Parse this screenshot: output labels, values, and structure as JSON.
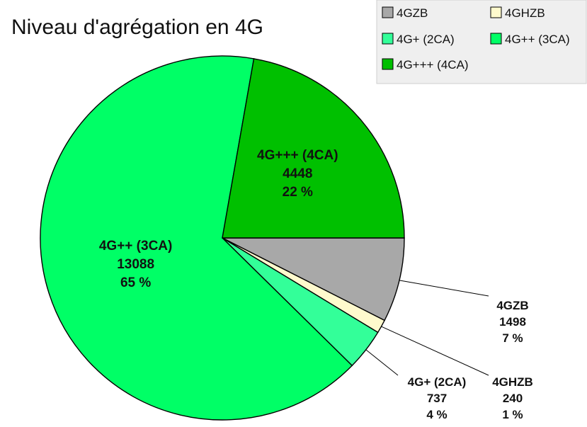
{
  "chart_data": {
    "type": "pie",
    "title": "Niveau d'agrégation en 4G",
    "legend_position": "top-right",
    "slices": [
      {
        "name": "4GZB",
        "value": 1498,
        "percent_label": "7 %",
        "color": "#a8a8a8"
      },
      {
        "name": "4GHZB",
        "value": 240,
        "percent_label": "1 %",
        "color": "#fffacd"
      },
      {
        "name": "4G+ (2CA)",
        "value": 737,
        "percent_label": "4 %",
        "color": "#33ff99"
      },
      {
        "name": "4G++ (3CA)",
        "value": 13088,
        "percent_label": "65 %",
        "color": "#00ff66"
      },
      {
        "name": "4G+++ (4CA)",
        "value": 4448,
        "percent_label": "22 %",
        "color": "#00c000"
      }
    ]
  }
}
